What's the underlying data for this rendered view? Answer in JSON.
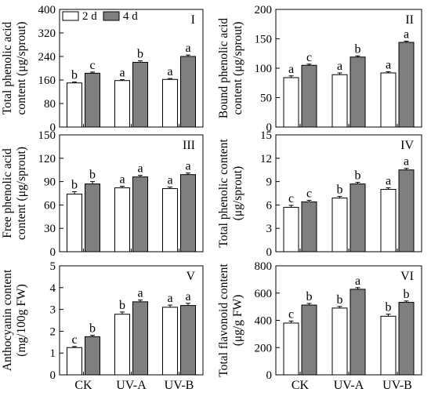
{
  "legend": [
    {
      "label": "2 d",
      "color": "#ffffff"
    },
    {
      "label": "4 d",
      "color": "#7f7f7f"
    }
  ],
  "chart_data": [
    {
      "type": "bar",
      "panel": "I",
      "ylabel": [
        "Total phenolic acid",
        "content (μg/sprout)"
      ],
      "ylim": [
        0,
        400
      ],
      "yticks": [
        0,
        80,
        160,
        240,
        320,
        400
      ],
      "categories": [
        "CK",
        "UV-A",
        "UV-B"
      ],
      "series": [
        {
          "name": "2 d",
          "values": [
            150,
            158,
            162
          ],
          "errors": [
            3,
            3,
            3
          ],
          "letters": [
            "b",
            "a",
            "a"
          ]
        },
        {
          "name": "4 d",
          "values": [
            183,
            220,
            240
          ],
          "errors": [
            4,
            5,
            5
          ],
          "letters": [
            "c",
            "b",
            "a"
          ]
        }
      ],
      "show_xlabels": false,
      "show_legend": true
    },
    {
      "type": "bar",
      "panel": "II",
      "ylabel": [
        "Bound phenolic acid",
        "content (μg/sprout)"
      ],
      "ylim": [
        0,
        200
      ],
      "yticks": [
        0,
        50,
        100,
        150,
        200
      ],
      "categories": [
        "CK",
        "UV-A",
        "UV-B"
      ],
      "series": [
        {
          "name": "2 d",
          "values": [
            84,
            89,
            92
          ],
          "errors": [
            3,
            3,
            2
          ],
          "letters": [
            "a",
            "a",
            "a"
          ]
        },
        {
          "name": "4 d",
          "values": [
            105,
            119,
            144
          ],
          "errors": [
            2,
            2,
            2
          ],
          "letters": [
            "c",
            "b",
            "a"
          ]
        }
      ],
      "show_xlabels": false,
      "show_legend": false
    },
    {
      "type": "bar",
      "panel": "III",
      "ylabel": [
        "Free phenolic acid",
        "content (μg/sprout)"
      ],
      "ylim": [
        0,
        150
      ],
      "yticks": [
        0,
        30,
        60,
        90,
        120,
        150
      ],
      "categories": [
        "CK",
        "UV-A",
        "UV-B"
      ],
      "series": [
        {
          "name": "2 d",
          "values": [
            74,
            82,
            81
          ],
          "errors": [
            3,
            2,
            2
          ],
          "letters": [
            "b",
            "a",
            "a"
          ]
        },
        {
          "name": "4 d",
          "values": [
            87,
            96,
            99
          ],
          "errors": [
            3,
            2,
            2
          ],
          "letters": [
            "b",
            "a",
            "a"
          ]
        }
      ],
      "show_xlabels": false,
      "show_legend": false
    },
    {
      "type": "bar",
      "panel": "IV",
      "ylabel": [
        "Total phenolic content",
        "(μg/sprout)"
      ],
      "ylim": [
        0,
        15
      ],
      "yticks": [
        0,
        3,
        6,
        9,
        12,
        15
      ],
      "categories": [
        "CK",
        "UV-A",
        "UV-B"
      ],
      "series": [
        {
          "name": "2 d",
          "values": [
            5.7,
            6.9,
            8.0
          ],
          "errors": [
            0.25,
            0.2,
            0.2
          ],
          "letters": [
            "c",
            "b",
            "a"
          ]
        },
        {
          "name": "4 d",
          "values": [
            6.4,
            8.7,
            10.5
          ],
          "errors": [
            0.2,
            0.2,
            0.2
          ],
          "letters": [
            "c",
            "b",
            "a"
          ]
        }
      ],
      "show_xlabels": false,
      "show_legend": false
    },
    {
      "type": "bar",
      "panel": "V",
      "ylabel": [
        "Anthocyanin content",
        "(mg/100g FW)"
      ],
      "ylim": [
        0,
        5
      ],
      "yticks": [
        0,
        1,
        2,
        3,
        4,
        5
      ],
      "categories": [
        "CK",
        "UV-A",
        "UV-B"
      ],
      "series": [
        {
          "name": "2 d",
          "values": [
            1.25,
            2.78,
            3.1
          ],
          "errors": [
            0.05,
            0.1,
            0.1
          ],
          "letters": [
            "c",
            "b",
            "a"
          ]
        },
        {
          "name": "4 d",
          "values": [
            1.75,
            3.35,
            3.18
          ],
          "errors": [
            0.06,
            0.08,
            0.1
          ],
          "letters": [
            "b",
            "a",
            "a"
          ]
        }
      ],
      "show_xlabels": true,
      "show_legend": false
    },
    {
      "type": "bar",
      "panel": "VI",
      "ylabel": [
        "Total flavonoid content",
        "(μg/g FW)"
      ],
      "ylim": [
        0,
        800
      ],
      "yticks": [
        0,
        200,
        400,
        600,
        800
      ],
      "categories": [
        "CK",
        "UV-A",
        "UV-B"
      ],
      "series": [
        {
          "name": "2 d",
          "values": [
            380,
            490,
            430
          ],
          "errors": [
            15,
            12,
            15
          ],
          "letters": [
            "c",
            "b",
            "b"
          ]
        },
        {
          "name": "4 d",
          "values": [
            512,
            628,
            532
          ],
          "errors": [
            12,
            12,
            10
          ],
          "letters": [
            "b",
            "a",
            "b"
          ]
        }
      ],
      "show_xlabels": true,
      "show_legend": false
    }
  ]
}
